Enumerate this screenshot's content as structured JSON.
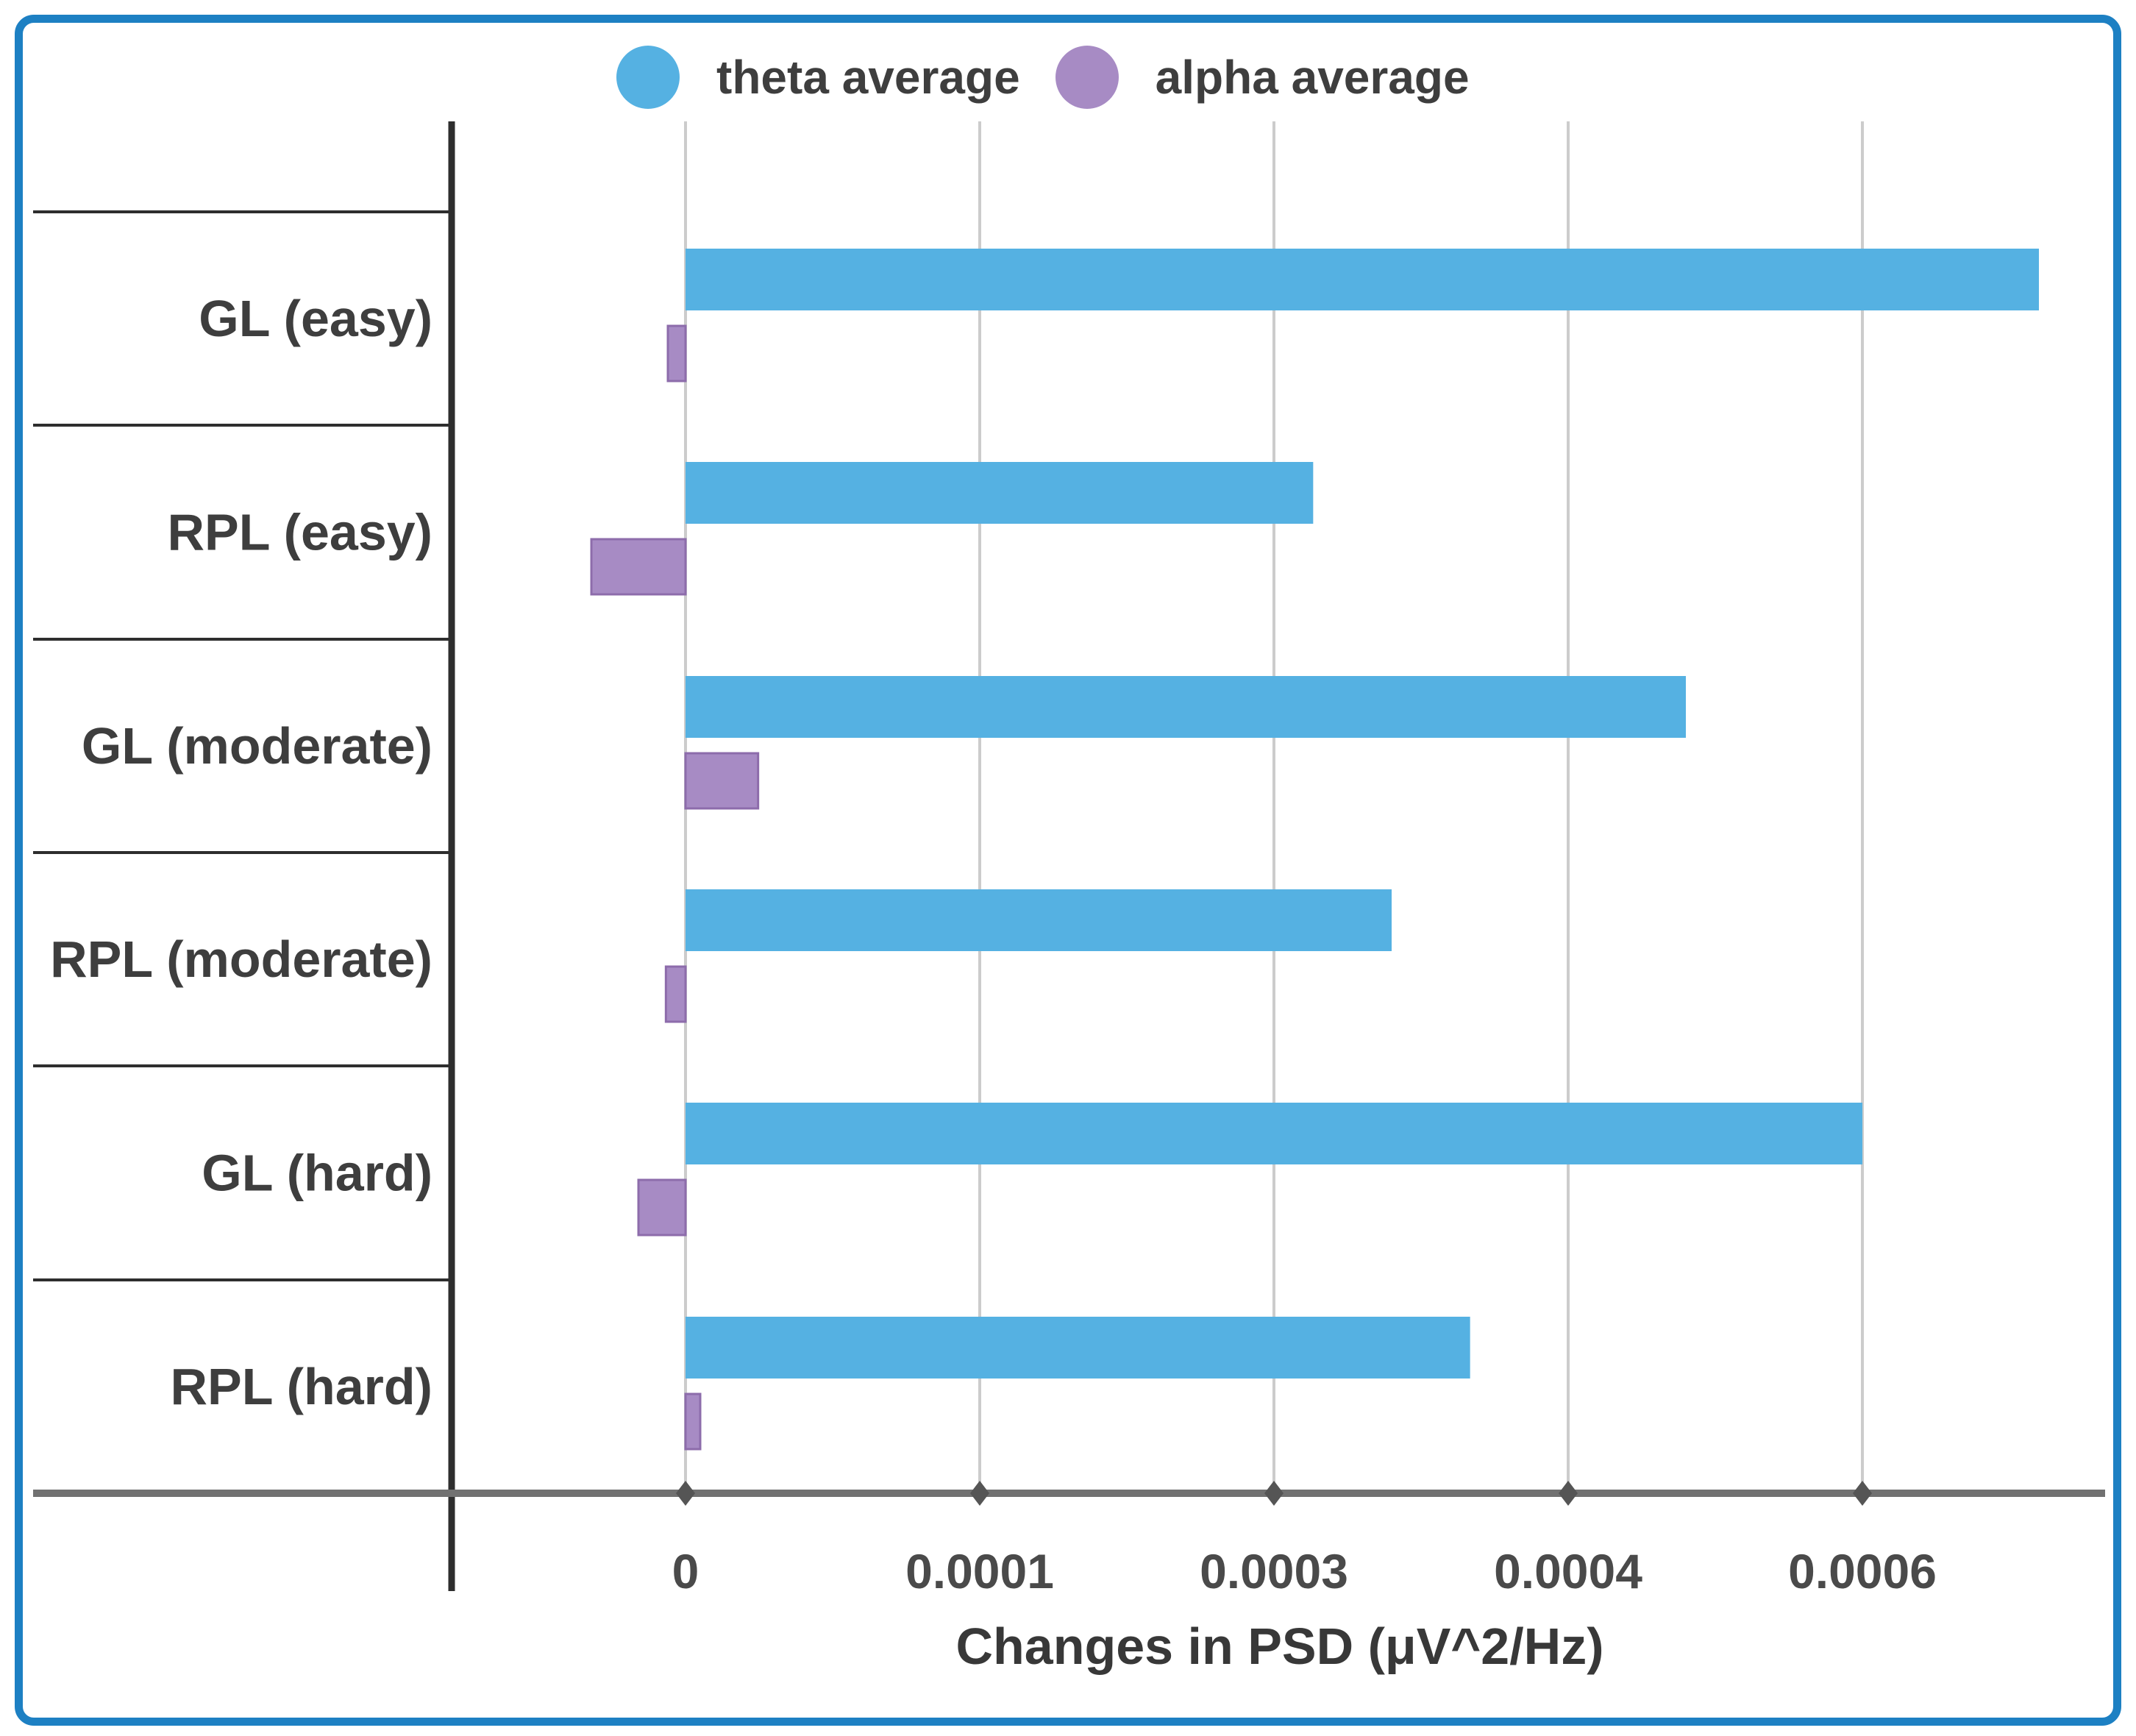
{
  "figure": {
    "border_color": "#1d80c3",
    "background_color": "#ffffff"
  },
  "legend": {
    "position": "top",
    "items": [
      {
        "label": "theta average",
        "color": "#55b1e2",
        "shape": "circle"
      },
      {
        "label": "alpha average",
        "color": "#a78bc4",
        "shape": "circle"
      }
    ]
  },
  "chart_data": {
    "type": "bar",
    "orientation": "horizontal",
    "title": "",
    "xlabel": "Changes in PSD (μV^2/Hz)",
    "ylabel": "",
    "categories": [
      "GL (easy)",
      "RPL (easy)",
      "GL (moderate)",
      "RPL (moderate)",
      "GL (hard)",
      "RPL (hard)"
    ],
    "series": [
      {
        "name": "theta average",
        "color": "#55b1e2",
        "values": [
          0.00069,
          0.00032,
          0.00051,
          0.00036,
          0.0006,
          0.0004
        ]
      },
      {
        "name": "alpha average",
        "color": "#a78bc4",
        "stroke_color": "#8d6cab",
        "values": [
          -9e-06,
          -4.8e-05,
          3.7e-05,
          -1e-05,
          -2.4e-05,
          7.5e-06
        ]
      }
    ],
    "x_ticks": [
      {
        "value": 0,
        "label": "0"
      },
      {
        "value": 0.00015,
        "label": "0.0001"
      },
      {
        "value": 0.0003,
        "label": "0.0003"
      },
      {
        "value": 0.00045,
        "label": "0.0004"
      },
      {
        "value": 0.0006,
        "label": "0.0006"
      }
    ],
    "xlim": [
      -0.000119,
      0.000724
    ],
    "grid": true,
    "legend_position": "top",
    "colors": {
      "gridline": "#cccccc",
      "baseline": "#717171",
      "axis_spine": "#2e2e2e",
      "divider": "#2e2e2e",
      "tick_marker": "#555555",
      "category_text": "#3e3e3e",
      "tick_text": "#4a4a4a",
      "title_text": "#383838"
    }
  }
}
